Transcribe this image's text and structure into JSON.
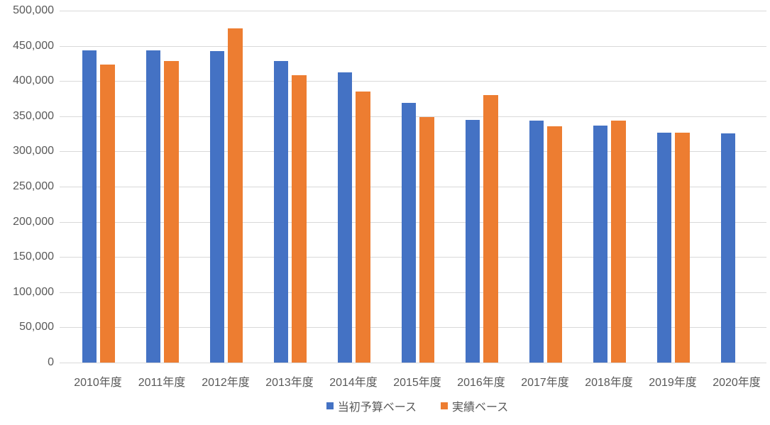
{
  "chart_data": {
    "type": "bar",
    "title": "",
    "xlabel": "",
    "ylabel": "",
    "categories": [
      "2010年度",
      "2011年度",
      "2012年度",
      "2013年度",
      "2014年度",
      "2015年度",
      "2016年度",
      "2017年度",
      "2018年度",
      "2019年度",
      "2020年度"
    ],
    "series": [
      {
        "name": "当初予算ベース",
        "color": "#4472C4",
        "values": [
          443300,
          443300,
          442500,
          428500,
          412300,
          369000,
          344500,
          343700,
          336900,
          326600,
          325500
        ]
      },
      {
        "name": "実績ベース",
        "color": "#ED7D31",
        "values": [
          423400,
          428400,
          474800,
          408500,
          385000,
          349200,
          380300,
          335500,
          343900,
          326500,
          null
        ]
      }
    ],
    "ylim": [
      0,
      500000
    ],
    "ytick_step": 50000,
    "yticks": [
      0,
      50000,
      100000,
      150000,
      200000,
      250000,
      300000,
      350000,
      400000,
      450000,
      500000
    ],
    "ytick_labels": [
      "0",
      "50,000",
      "100,000",
      "150,000",
      "200,000",
      "250,000",
      "300,000",
      "350,000",
      "400,000",
      "450,000",
      "500,000"
    ],
    "grid": true,
    "legend_position": "bottom"
  },
  "colors": {
    "text": "#595959",
    "gridline": "#D9D9D9",
    "axis_line": "#D9D9D9",
    "background": "#FFFFFF",
    "series_blue": "#4472C4",
    "series_orange": "#ED7D31"
  }
}
